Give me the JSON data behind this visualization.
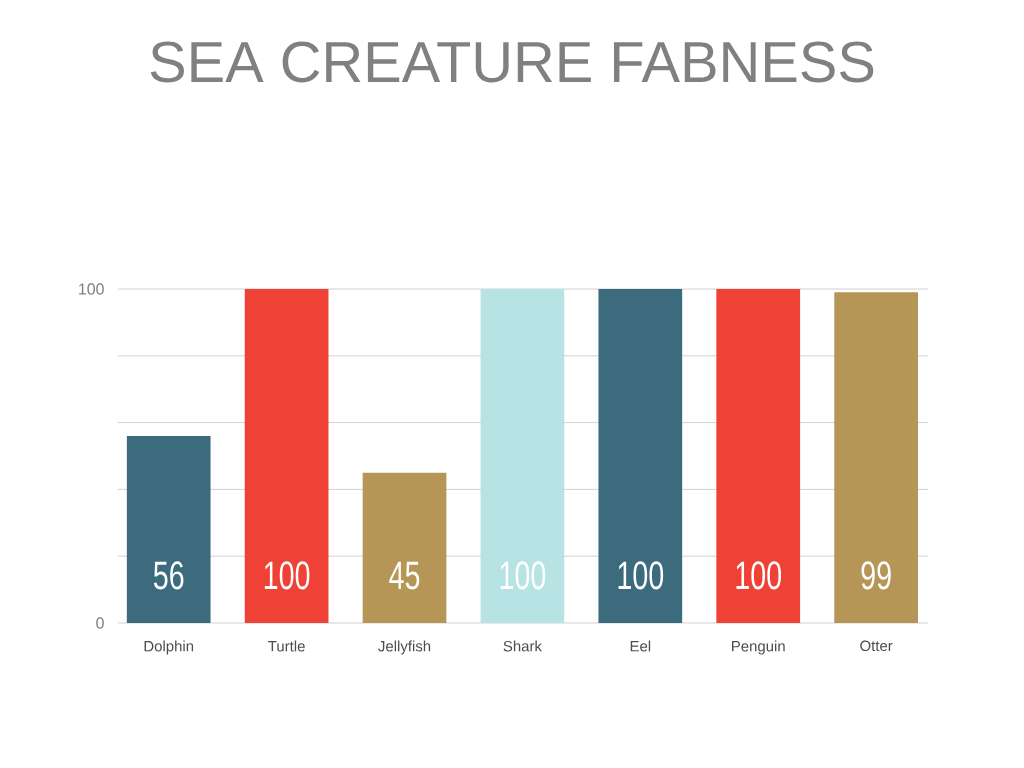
{
  "chart_data": {
    "type": "bar",
    "title": "SEA CREATURE FABNESS",
    "categories": [
      "Dolphin",
      "Turtle",
      "Jellyfish",
      "Shark",
      "Eel",
      "Penguin",
      "Otter"
    ],
    "values": [
      56,
      100,
      45,
      100,
      100,
      100,
      99
    ],
    "colors": [
      "#3d6b7e",
      "#ef4135",
      "#b59656",
      "#b8e3e4",
      "#3d6b7e",
      "#ef4135",
      "#b59656"
    ],
    "ylim": [
      0,
      100
    ],
    "yticks": [
      0,
      {
        "value": 20,
        "label": null
      },
      {
        "value": 40,
        "label": null
      },
      {
        "value": 60,
        "label": null
      },
      {
        "value": 80,
        "label": null
      },
      100
    ],
    "grid": "y",
    "data_labels": true
  }
}
